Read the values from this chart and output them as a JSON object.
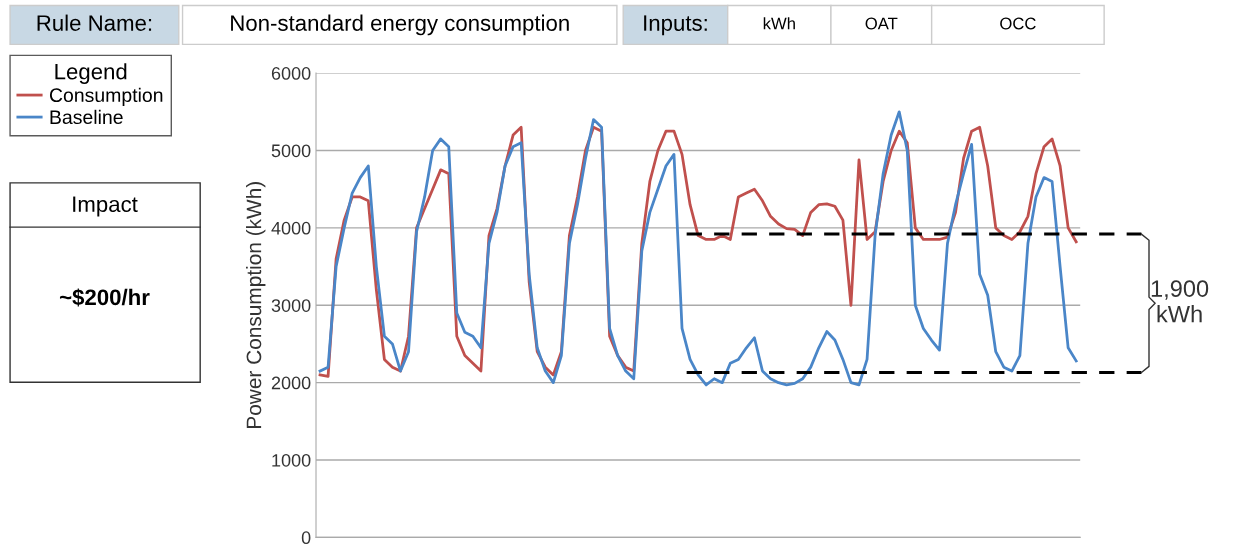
{
  "chart_data": {
    "type": "line",
    "ylabel": "Power Consumption (kWh)",
    "categories": [
      null,
      null,
      null,
      null,
      null,
      null,
      null,
      null,
      null,
      null,
      null,
      null,
      null,
      null,
      null,
      null,
      null,
      null,
      null,
      null,
      null,
      null,
      null,
      null,
      null,
      null,
      null,
      null,
      null,
      null,
      null,
      null,
      null,
      null,
      null,
      null,
      null,
      null,
      null,
      null,
      null,
      null,
      null,
      null,
      null,
      null,
      null,
      null,
      null,
      null,
      null,
      null,
      null,
      null,
      null,
      null,
      null,
      null,
      null,
      null,
      null,
      null,
      null,
      null,
      null,
      null,
      null,
      null,
      null,
      null,
      null,
      null,
      null,
      null,
      null,
      null,
      null,
      null,
      null,
      null,
      null,
      null,
      null,
      null,
      null,
      null,
      null,
      null,
      null,
      null,
      null,
      null,
      null,
      null,
      null
    ],
    "series": [
      {
        "name": "Consumption",
        "color": "#c0504d",
        "values": [
          2100,
          2080,
          3600,
          4100,
          4400,
          4400,
          4350,
          3200,
          2300,
          2200,
          2150,
          2600,
          4000,
          4250,
          4500,
          4750,
          4700,
          2600,
          2350,
          2250,
          2150,
          3900,
          4250,
          4800,
          5200,
          5300,
          3300,
          2400,
          2200,
          2100,
          2400,
          3900,
          4400,
          5000,
          5300,
          5250,
          2600,
          2350,
          2200,
          2150,
          3800,
          4600,
          5000,
          5250,
          5250,
          4950,
          4300,
          3900,
          3850,
          3850,
          3900,
          3850,
          4400,
          4450,
          4500,
          4350,
          4150,
          4050,
          3990,
          3980,
          3900,
          4200,
          4300,
          4310,
          4280,
          4100,
          3000,
          4880,
          3850,
          3950,
          4600,
          5000,
          5250,
          5100,
          4000,
          3850,
          3850,
          3850,
          3880,
          4200,
          4900,
          5250,
          5300,
          4800,
          4000,
          3900,
          3850,
          3950,
          4150,
          4700,
          5050,
          5150,
          4800,
          4000,
          3820
        ]
      },
      {
        "name": "Baseline",
        "color": "#4a86c8",
        "values": [
          2150,
          2200,
          3500,
          4000,
          4450,
          4650,
          4800,
          3500,
          2600,
          2500,
          2150,
          2400,
          3950,
          4400,
          5000,
          5150,
          5050,
          2900,
          2650,
          2600,
          2450,
          3800,
          4200,
          4800,
          5050,
          5100,
          3400,
          2450,
          2150,
          2000,
          2350,
          3800,
          4300,
          4900,
          5400,
          5300,
          2700,
          2350,
          2150,
          2050,
          3700,
          4200,
          4500,
          4800,
          4950,
          2700,
          2300,
          2100,
          1970,
          2050,
          2000,
          2250,
          2300,
          2450,
          2580,
          2150,
          2050,
          2000,
          1970,
          1990,
          2050,
          2200,
          2450,
          2660,
          2550,
          2300,
          2000,
          1970,
          2300,
          3900,
          4700,
          5200,
          5500,
          5000,
          3000,
          2700,
          2550,
          2420,
          3800,
          4300,
          4700,
          5080,
          3400,
          3130,
          2400,
          2200,
          2150,
          2350,
          3800,
          4400,
          4650,
          4600,
          3500,
          2450,
          2280
        ]
      }
    ],
    "ylim": [
      0,
      6000
    ],
    "yticks": [
      0,
      1000,
      2000,
      3000,
      4000,
      5000,
      6000
    ],
    "grid": "y",
    "legend": "left",
    "legend_title": "Legend",
    "tick_labels": "y",
    "line_style": "solid",
    "marker": "none",
    "ref_lines": [
      {
        "axis": "y",
        "value": 3920,
        "color": "#000000",
        "line_style": "dashed"
      },
      {
        "axis": "y",
        "value": 2130,
        "color": "#000000",
        "line_style": "dashed"
      }
    ],
    "annotations": [
      "Rule Name:",
      "Non-standard energy consumption",
      "Inputs:",
      "kWh",
      "OAT",
      "OCC",
      "Impact",
      "~$200/hr",
      "1,900\nkWh"
    ]
  }
}
